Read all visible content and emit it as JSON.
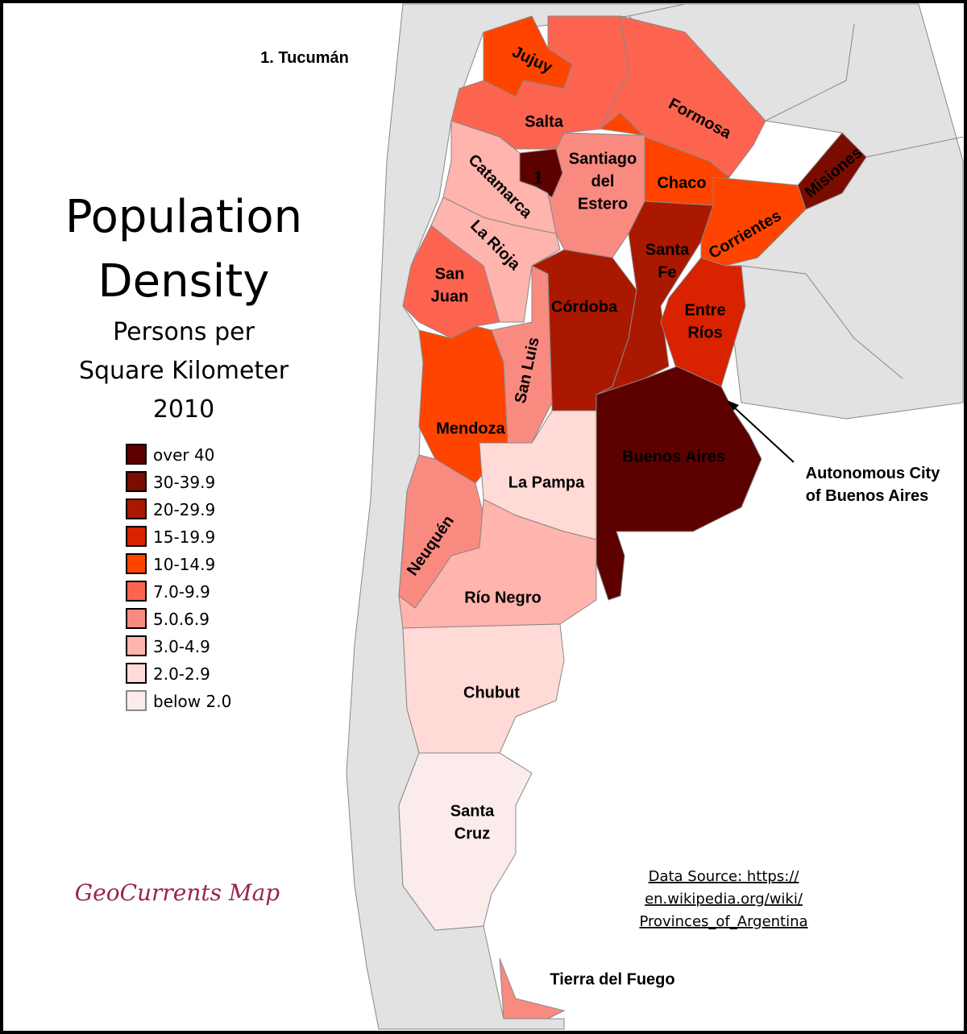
{
  "title": {
    "lines": [
      "Population",
      "Density"
    ],
    "subtitle": [
      "Persons per",
      "Square Kilometer",
      "2010"
    ]
  },
  "footnote": "1. Tucumán",
  "legend": [
    {
      "label": "over 40",
      "color": "#5c0000"
    },
    {
      "label": "30-39.9",
      "color": "#7a0c00"
    },
    {
      "label": "20-29.9",
      "color": "#ab1800"
    },
    {
      "label": "15-19.9",
      "color": "#d92200"
    },
    {
      "label": "10-14.9",
      "color": "#ff4400"
    },
    {
      "label": "7.0-9.9",
      "color": "#fd6450"
    },
    {
      "label": "5.0.6.9",
      "color": "#f98a80"
    },
    {
      "label": "3.0-4.9",
      "color": "#ffb4ad"
    },
    {
      "label": "2.0-2.9",
      "color": "#ffdad6"
    },
    {
      "label": "below 2.0",
      "color": "#fbeceb"
    }
  ],
  "provinces": [
    {
      "label": [
        "Jujuy"
      ],
      "color": "#ff4400"
    },
    {
      "label": [
        "Salta"
      ],
      "color": "#fd6450"
    },
    {
      "label": [
        "Formosa"
      ],
      "color": "#fd6450"
    },
    {
      "label": [
        "Chaco"
      ],
      "color": "#ff4400"
    },
    {
      "label": [
        "Santiago",
        "del",
        "Estero"
      ],
      "color": "#f98a80"
    },
    {
      "label": [
        "1"
      ],
      "color": "#5c0000"
    },
    {
      "label": [
        "Catamarca"
      ],
      "color": "#ffb4ad"
    },
    {
      "label": [
        "La Rioja"
      ],
      "color": "#ffb4ad"
    },
    {
      "label": [
        "San",
        "Juan"
      ],
      "color": "#fd6450"
    },
    {
      "label": [
        "Mendoza"
      ],
      "color": "#ff4400"
    },
    {
      "label": [
        "San Luis"
      ],
      "color": "#f98a80"
    },
    {
      "label": [
        "Córdoba"
      ],
      "color": "#ab1800"
    },
    {
      "label": [
        "Santa",
        "Fe"
      ],
      "color": "#ab1800"
    },
    {
      "label": [
        "Corrientes"
      ],
      "color": "#ff4400"
    },
    {
      "label": [
        "Misiones"
      ],
      "color": "#7a0c00"
    },
    {
      "label": [
        "Entre",
        "Ríos"
      ],
      "color": "#d92200"
    },
    {
      "label": [
        "Buenos Aires"
      ],
      "color": "#5c0000"
    },
    {
      "label": [
        "La Pampa"
      ],
      "color": "#ffdad6"
    },
    {
      "label": [
        "Neuquén"
      ],
      "color": "#f98a80"
    },
    {
      "label": [
        "Río Negro"
      ],
      "color": "#ffb4ad"
    },
    {
      "label": [
        "Chubut"
      ],
      "color": "#ffdad6"
    },
    {
      "label": [
        "Santa",
        "Cruz"
      ],
      "color": "#fbeceb"
    },
    {
      "label": [
        "Tierra del Fuego"
      ],
      "color": "#f98a80"
    }
  ],
  "annotation": [
    "Autonomous City",
    "of Buenos Aires"
  ],
  "credit": "GeoCurrents Map",
  "source": [
    "Data Source: https://",
    "en.wikipedia.org/wiki/",
    "Provinces_of_Argentina"
  ]
}
